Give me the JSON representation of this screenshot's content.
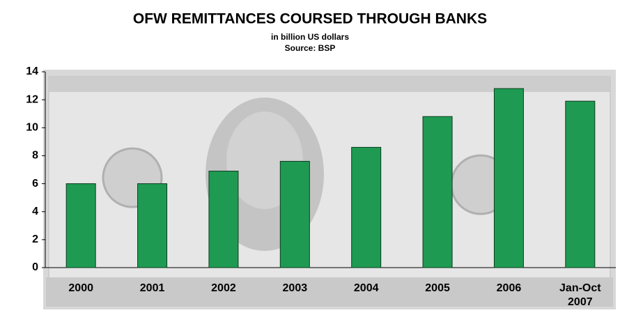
{
  "chart_data": {
    "type": "bar",
    "title": "OFW REMITTANCES COURSED THROUGH BANKS",
    "subtitle": "in billion US dollars",
    "source": "Source: BSP",
    "categories": [
      "2000",
      "2001",
      "2002",
      "2003",
      "2004",
      "2005",
      "2006",
      "Jan-Oct 2007"
    ],
    "values": [
      6.0,
      6.0,
      6.9,
      7.6,
      8.6,
      10.8,
      12.8,
      11.9
    ],
    "color": "#1f9a52",
    "ylim": [
      0,
      14
    ],
    "yticks": [
      0,
      2,
      4,
      6,
      8,
      10,
      12,
      14
    ],
    "grid": false
  }
}
